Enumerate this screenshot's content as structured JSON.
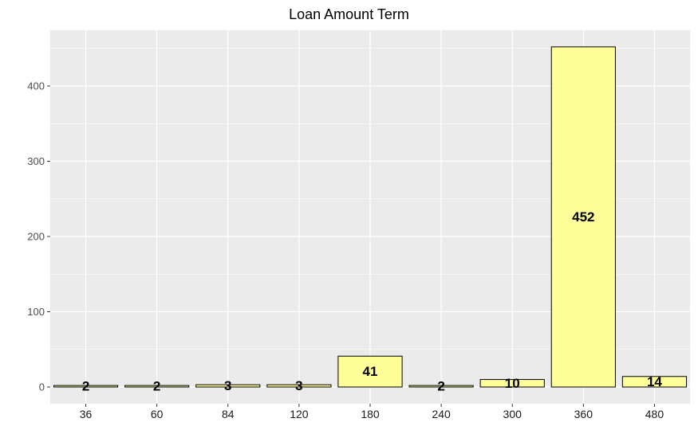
{
  "chart_data": {
    "type": "bar",
    "title": "Loan Amount Term",
    "xlabel": "",
    "ylabel": "",
    "categories": [
      "36",
      "60",
      "84",
      "120",
      "180",
      "240",
      "300",
      "360",
      "480"
    ],
    "values": [
      2,
      2,
      3,
      3,
      41,
      2,
      10,
      452,
      14
    ],
    "y_ticks": [
      0,
      100,
      200,
      300,
      400
    ],
    "ylim": [
      0,
      475
    ],
    "grid": true,
    "legend": "none",
    "colors": {
      "panel_bg": "#ebebeb",
      "grid": "#ffffff",
      "bar_fill": "#ffff99",
      "bar_stroke": "#000000"
    }
  }
}
